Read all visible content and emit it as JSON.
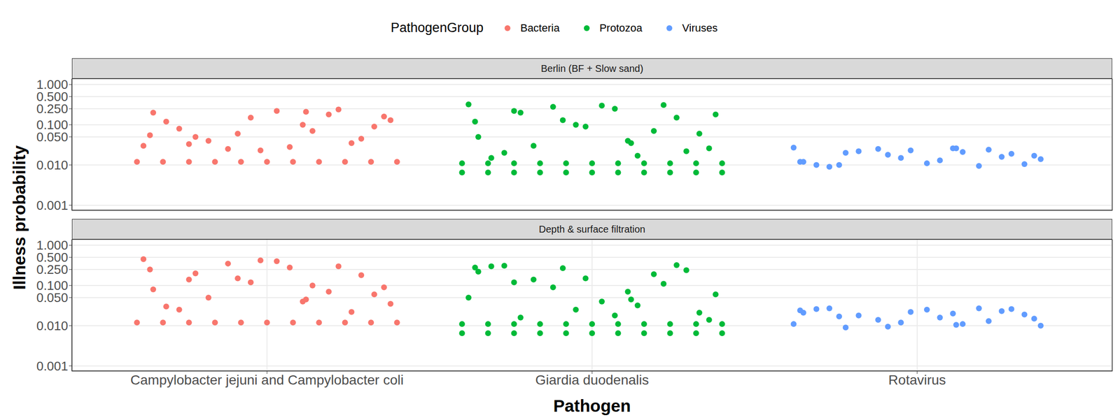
{
  "chart_data": {
    "type": "scatter",
    "x_label": "Pathogen",
    "y_label": "Illness probability",
    "legend_title": "PathogenGroup",
    "legend": "top",
    "log": "y",
    "grid": true,
    "marker": "circle",
    "xlim": [
      0.4,
      3.6
    ],
    "xticks": [
      {
        "value": 1,
        "label": "Campylobacter jejuni and Campylobacter coli"
      },
      {
        "value": 2,
        "label": "Giardia duodenalis"
      },
      {
        "value": 3,
        "label": "Rotavirus"
      }
    ],
    "ylim": [
      0.00075,
      1.4
    ],
    "yticks": [
      {
        "value": 0.001,
        "label": "0.001"
      },
      {
        "value": 0.01,
        "label": "0.010"
      },
      {
        "value": 0.05,
        "label": "0.050"
      },
      {
        "value": 0.1,
        "label": "0.100"
      },
      {
        "value": 0.25,
        "label": "0.250"
      },
      {
        "value": 0.5,
        "label": "0.500"
      },
      {
        "value": 1,
        "label": "1.000"
      }
    ],
    "series": [
      {
        "name": "Bacteria",
        "color": "#f8766d"
      },
      {
        "name": "Protozoa",
        "color": "#00ba38"
      },
      {
        "name": "Viruses",
        "color": "#619cff"
      }
    ],
    "panels": [
      {
        "title": "Berlin (BF + Slow sand)",
        "series": [
          {
            "name": "Bacteria",
            "x": [
              0.6,
              0.68,
              0.76,
              0.84,
              0.92,
              1,
              1.08,
              1.16,
              1.24,
              1.32,
              1.4,
              0.62,
              0.69,
              0.78,
              0.65,
              0.88,
              0.73,
              0.95,
              0.82,
              1.03,
              0.91,
              1.11,
              1.07,
              1.19,
              1.14,
              1.26,
              1.22,
              1.33,
              1.29,
              1.38,
              0.98,
              1.36,
              0.64,
              1.12,
              0.76
            ],
            "values": [
              0.012,
              0.012,
              0.012,
              0.012,
              0.012,
              0.012,
              0.012,
              0.012,
              0.012,
              0.012,
              0.012,
              0.03,
              0.12,
              0.05,
              0.2,
              0.025,
              0.08,
              0.15,
              0.04,
              0.22,
              0.06,
              0.1,
              0.028,
              0.18,
              0.07,
              0.035,
              0.24,
              0.09,
              0.045,
              0.13,
              0.023,
              0.16,
              0.055,
              0.21,
              0.033
            ]
          },
          {
            "name": "Protozoa",
            "x": [
              1.6,
              1.68,
              1.76,
              1.84,
              1.92,
              2,
              2.08,
              2.16,
              2.24,
              2.32,
              2.4,
              1.6,
              1.68,
              1.76,
              1.84,
              1.92,
              2,
              2.08,
              2.16,
              2.24,
              2.32,
              2.4,
              1.62,
              1.69,
              1.78,
              1.65,
              1.88,
              1.73,
              1.95,
              1.82,
              2.03,
              1.91,
              2.11,
              2.07,
              2.19,
              2.14,
              2.26,
              2.22,
              2.33,
              2.29,
              2.38,
              1.98,
              2.36,
              1.64,
              2.12,
              1.76
            ],
            "values": [
              0.0065,
              0.0065,
              0.0065,
              0.0065,
              0.0065,
              0.0065,
              0.0065,
              0.0065,
              0.0065,
              0.0065,
              0.0065,
              0.011,
              0.011,
              0.011,
              0.011,
              0.011,
              0.011,
              0.011,
              0.011,
              0.011,
              0.011,
              0.011,
              0.32,
              0.015,
              0.2,
              0.05,
              0.28,
              0.02,
              0.1,
              0.03,
              0.3,
              0.13,
              0.04,
              0.25,
              0.07,
              0.017,
              0.15,
              0.31,
              0.06,
              0.022,
              0.18,
              0.09,
              0.026,
              0.12,
              0.035,
              0.22
            ]
          },
          {
            "name": "Viruses",
            "x": [
              2.62,
              2.69,
              2.78,
              2.65,
              2.88,
              2.73,
              2.95,
              2.82,
              3.03,
              2.91,
              3.11,
              3.07,
              3.19,
              3.14,
              3.26,
              3.22,
              3.33,
              3.29,
              3.38,
              2.98,
              3.36,
              2.64,
              3.12,
              2.76
            ],
            "values": [
              0.027,
              0.01,
              0.02,
              0.012,
              0.025,
              0.009,
              0.015,
              0.022,
              0.011,
              0.018,
              0.026,
              0.013,
              0.0095,
              0.021,
              0.016,
              0.024,
              0.0105,
              0.019,
              0.014,
              0.023,
              0.017,
              0.012,
              0.026,
              0.01
            ]
          }
        ]
      },
      {
        "title": "Depth & surface filtration",
        "series": [
          {
            "name": "Bacteria",
            "x": [
              0.6,
              0.68,
              0.76,
              0.84,
              0.92,
              1,
              1.08,
              1.16,
              1.24,
              1.32,
              1.4,
              0.62,
              0.69,
              0.78,
              0.65,
              0.88,
              0.73,
              0.95,
              0.82,
              1.03,
              0.91,
              1.11,
              1.07,
              1.19,
              1.14,
              1.26,
              1.22,
              1.33,
              1.29,
              1.38,
              0.98,
              1.36,
              0.64,
              1.12,
              0.76
            ],
            "values": [
              0.012,
              0.012,
              0.012,
              0.012,
              0.012,
              0.012,
              0.012,
              0.012,
              0.012,
              0.012,
              0.012,
              0.45,
              0.03,
              0.2,
              0.08,
              0.35,
              0.025,
              0.12,
              0.05,
              0.4,
              0.15,
              0.04,
              0.28,
              0.07,
              0.1,
              0.022,
              0.3,
              0.06,
              0.18,
              0.035,
              0.42,
              0.09,
              0.25,
              0.045,
              0.14
            ]
          },
          {
            "name": "Protozoa",
            "x": [
              1.6,
              1.68,
              1.76,
              1.84,
              1.92,
              2,
              2.08,
              2.16,
              2.24,
              2.32,
              2.4,
              1.6,
              1.68,
              1.76,
              1.84,
              1.92,
              2,
              2.08,
              2.16,
              2.24,
              2.32,
              2.4,
              1.62,
              1.69,
              1.78,
              1.65,
              1.88,
              1.73,
              1.95,
              1.82,
              2.03,
              1.91,
              2.11,
              2.07,
              2.19,
              2.14,
              2.26,
              2.22,
              2.33,
              2.29,
              2.38,
              1.98,
              2.36,
              1.64,
              2.12,
              1.76
            ],
            "values": [
              0.0065,
              0.0065,
              0.0065,
              0.0065,
              0.0065,
              0.0065,
              0.0065,
              0.0065,
              0.0065,
              0.0065,
              0.0065,
              0.011,
              0.011,
              0.011,
              0.011,
              0.011,
              0.011,
              0.011,
              0.011,
              0.011,
              0.011,
              0.011,
              0.05,
              0.3,
              0.016,
              0.22,
              0.09,
              0.31,
              0.025,
              0.14,
              0.04,
              0.27,
              0.07,
              0.018,
              0.19,
              0.032,
              0.32,
              0.11,
              0.021,
              0.24,
              0.06,
              0.15,
              0.014,
              0.28,
              0.045,
              0.12
            ]
          },
          {
            "name": "Viruses",
            "x": [
              2.62,
              2.69,
              2.78,
              2.65,
              2.88,
              2.73,
              2.95,
              2.82,
              3.03,
              2.91,
              3.11,
              3.07,
              3.19,
              3.14,
              3.26,
              3.22,
              3.33,
              3.29,
              3.38,
              2.98,
              3.36,
              2.64,
              3.12,
              2.76
            ],
            "values": [
              0.011,
              0.026,
              0.009,
              0.021,
              0.014,
              0.027,
              0.012,
              0.018,
              0.025,
              0.0095,
              0.02,
              0.016,
              0.027,
              0.011,
              0.023,
              0.013,
              0.019,
              0.026,
              0.01,
              0.022,
              0.015,
              0.024,
              0.0105,
              0.017
            ]
          }
        ]
      }
    ]
  }
}
